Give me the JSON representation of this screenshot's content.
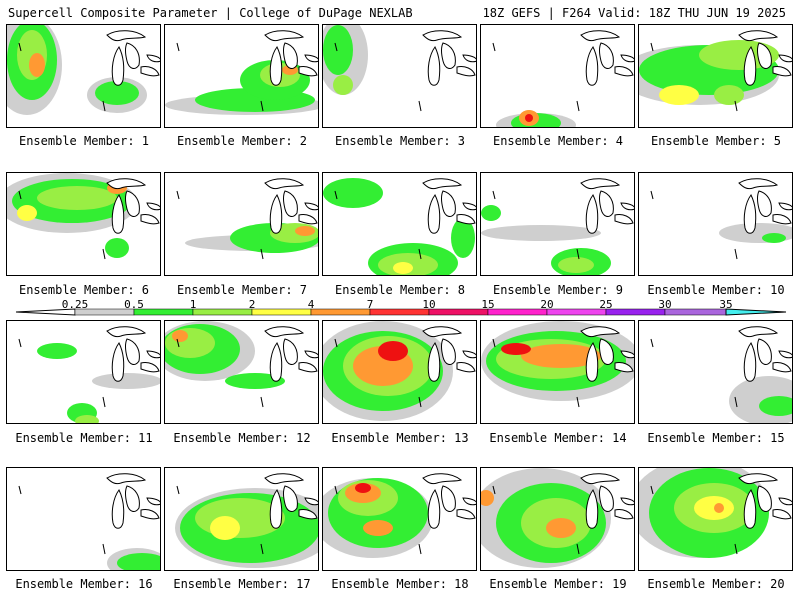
{
  "header": {
    "left": "Supercell Composite Parameter | College of DuPage NEXLAB",
    "right": "18Z GEFS | F264 Valid: 18Z THU JUN 19 2025"
  },
  "legend": {
    "labels": [
      "0.25",
      "0.5",
      "1",
      "2",
      "4",
      "7",
      "10",
      "15",
      "20",
      "25",
      "30",
      "35"
    ],
    "colors": [
      "#cfcfcf",
      "#33ee33",
      "#99ee44",
      "#ffff44",
      "#ff9933",
      "#ff3333",
      "#ee1166",
      "#ff22cc",
      "#ee44ee",
      "#9922ee",
      "#aa66dd",
      "#44eeee"
    ]
  },
  "panels": [
    {
      "caption": "Ensemble Member: 1"
    },
    {
      "caption": "Ensemble Member: 2"
    },
    {
      "caption": "Ensemble Member: 3"
    },
    {
      "caption": "Ensemble Member: 4"
    },
    {
      "caption": "Ensemble Member: 5"
    },
    {
      "caption": "Ensemble Member: 6"
    },
    {
      "caption": "Ensemble Member: 7"
    },
    {
      "caption": "Ensemble Member: 8"
    },
    {
      "caption": "Ensemble Member: 9"
    },
    {
      "caption": "Ensemble Member: 10"
    },
    {
      "caption": "Ensemble Member: 11"
    },
    {
      "caption": "Ensemble Member: 12"
    },
    {
      "caption": "Ensemble Member: 13"
    },
    {
      "caption": "Ensemble Member: 14"
    },
    {
      "caption": "Ensemble Member: 15"
    },
    {
      "caption": "Ensemble Member: 16"
    },
    {
      "caption": "Ensemble Member: 17"
    },
    {
      "caption": "Ensemble Member: 18"
    },
    {
      "caption": "Ensemble Member: 19"
    },
    {
      "caption": "Ensemble Member: 20"
    }
  ]
}
